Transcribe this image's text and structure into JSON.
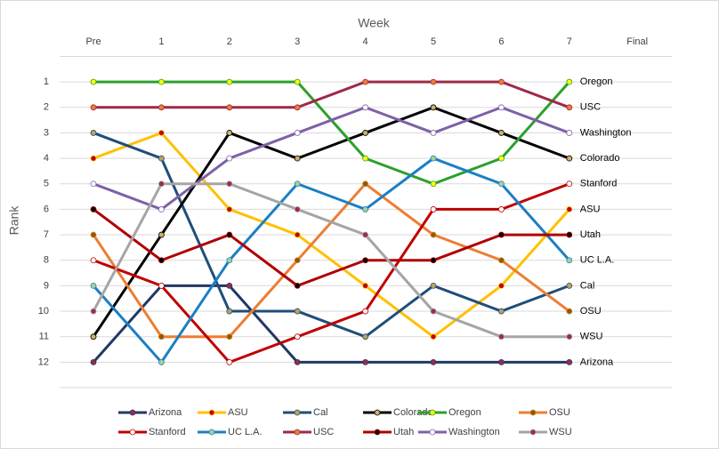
{
  "chart_data": {
    "type": "line",
    "x_label": "Week",
    "y_label": "Rank",
    "categories": [
      "Pre",
      "1",
      "2",
      "3",
      "4",
      "5",
      "6",
      "7",
      "Final"
    ],
    "ylim": [
      0,
      13
    ],
    "yticks": [
      1,
      2,
      3,
      4,
      5,
      6,
      7,
      8,
      9,
      10,
      11,
      12
    ],
    "y_inverted": true,
    "grid": true,
    "series": [
      {
        "name": "Arizona",
        "color": "#203864",
        "marker_color": "#9e2a47",
        "values": [
          12,
          9,
          9,
          12,
          12,
          12,
          12,
          12,
          null
        ]
      },
      {
        "name": "ASU",
        "color": "#ffc000",
        "marker_color": "#c00000",
        "values": [
          4,
          3,
          6,
          7,
          9,
          11,
          9,
          6,
          null
        ]
      },
      {
        "name": "Cal",
        "color": "#1f4e79",
        "marker_color": "#bfa060",
        "values": [
          3,
          4,
          10,
          10,
          11,
          9,
          10,
          9,
          null
        ]
      },
      {
        "name": "Colorado",
        "color": "#000000",
        "marker_color": "#c9b26b",
        "values": [
          11,
          7,
          3,
          4,
          3,
          2,
          3,
          4,
          null
        ]
      },
      {
        "name": "Oregon",
        "color": "#2ca02c",
        "marker_color": "#ffff00",
        "values": [
          1,
          1,
          1,
          1,
          4,
          5,
          4,
          1,
          null
        ]
      },
      {
        "name": "OSU",
        "color": "#ed7d31",
        "marker_color": "#7f6000",
        "values": [
          7,
          11,
          11,
          8,
          5,
          7,
          8,
          10,
          null
        ]
      },
      {
        "name": "Stanford",
        "color": "#c00000",
        "marker_color": "#ffffff",
        "values": [
          8,
          9,
          12,
          11,
          10,
          6,
          6,
          5,
          null
        ]
      },
      {
        "name": "UC L.A.",
        "color": "#1b7fc4",
        "marker_color": "#a9d18e",
        "values": [
          9,
          12,
          8,
          5,
          6,
          4,
          5,
          8,
          null
        ]
      },
      {
        "name": "USC",
        "color": "#9e2a47",
        "marker_color": "#ed7d31",
        "values": [
          2,
          2,
          2,
          2,
          1,
          1,
          1,
          2,
          null
        ]
      },
      {
        "name": "Utah",
        "color": "#b00000",
        "marker_color": "#000000",
        "values": [
          6,
          8,
          7,
          9,
          8,
          8,
          7,
          7,
          null
        ]
      },
      {
        "name": "Washington",
        "color": "#7f60a8",
        "marker_color": "#ffffff",
        "values": [
          5,
          6,
          4,
          3,
          2,
          3,
          2,
          3,
          null
        ]
      },
      {
        "name": "WSU",
        "color": "#a5a5a5",
        "marker_color": "#9e2a47",
        "values": [
          10,
          5,
          5,
          6,
          7,
          10,
          11,
          11,
          null
        ]
      }
    ]
  }
}
